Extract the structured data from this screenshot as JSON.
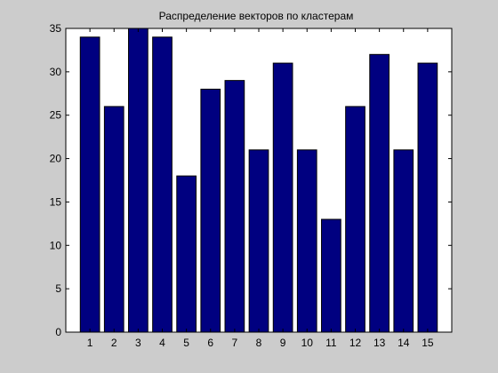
{
  "chart_data": {
    "type": "bar",
    "title": "Распределение векторов по кластерам",
    "xlabel": "",
    "ylabel": "",
    "categories": [
      "1",
      "2",
      "3",
      "4",
      "5",
      "6",
      "7",
      "8",
      "9",
      "10",
      "11",
      "12",
      "13",
      "14",
      "15"
    ],
    "values": [
      34,
      26,
      35,
      34,
      18,
      28,
      29,
      21,
      31,
      21,
      13,
      26,
      32,
      21,
      31
    ],
    "ylim": [
      0,
      35
    ],
    "xlim": [
      0,
      16
    ],
    "yticks": [
      0,
      5,
      10,
      15,
      20,
      25,
      30,
      35
    ],
    "grid": false,
    "legend": "none",
    "colors": {
      "bar_fill": "#000080",
      "bar_edge": "#000000",
      "axes_bg": "#ffffff",
      "figure_bg": "#cccccc"
    }
  }
}
